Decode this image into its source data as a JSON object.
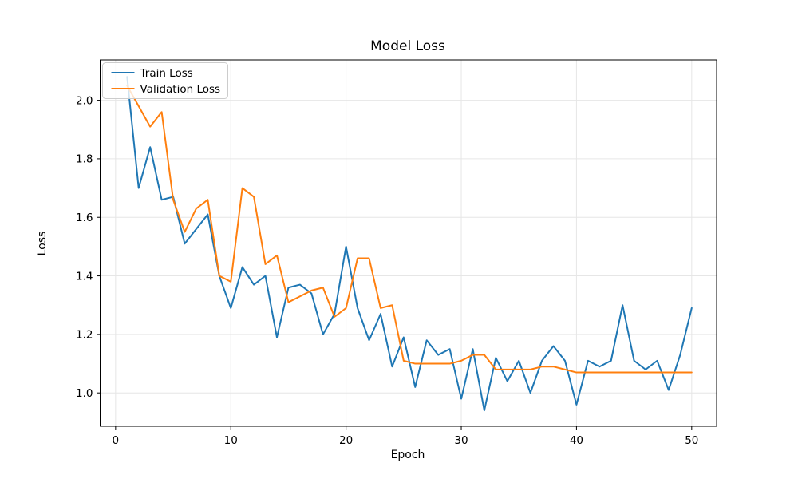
{
  "chart_data": {
    "type": "line",
    "title": "Model Loss",
    "xlabel": "Epoch",
    "ylabel": "Loss",
    "grid": true,
    "legend_position": "upper left",
    "xlim": [
      -1.34,
      52.16
    ],
    "ylim": [
      0.886,
      2.138
    ],
    "xticks": [
      0,
      10,
      20,
      30,
      40,
      50
    ],
    "yticks": [
      1.0,
      1.2,
      1.4,
      1.6,
      1.8,
      2.0
    ],
    "ytick_labels": [
      "1.0",
      "1.2",
      "1.4",
      "1.6",
      "1.8",
      "2.0"
    ],
    "x": [
      1,
      2,
      3,
      4,
      5,
      6,
      7,
      8,
      9,
      10,
      11,
      12,
      13,
      14,
      15,
      16,
      17,
      18,
      19,
      20,
      21,
      22,
      23,
      24,
      25,
      26,
      27,
      28,
      29,
      30,
      31,
      32,
      33,
      34,
      35,
      36,
      37,
      38,
      39,
      40,
      41,
      42,
      43,
      44,
      45,
      46,
      47,
      48,
      49,
      50
    ],
    "series": [
      {
        "name": "Train Loss",
        "color": "#1f77b4",
        "values": [
          2.08,
          1.7,
          1.84,
          1.66,
          1.67,
          1.51,
          1.56,
          1.61,
          1.4,
          1.29,
          1.43,
          1.37,
          1.4,
          1.19,
          1.36,
          1.37,
          1.34,
          1.2,
          1.27,
          1.5,
          1.29,
          1.18,
          1.27,
          1.09,
          1.19,
          1.02,
          1.18,
          1.13,
          1.15,
          0.98,
          1.15,
          0.94,
          1.12,
          1.04,
          1.11,
          1.0,
          1.11,
          1.16,
          1.11,
          0.96,
          1.11,
          1.09,
          1.11,
          1.3,
          1.11,
          1.08,
          1.11,
          1.01,
          1.13,
          1.29
        ]
      },
      {
        "name": "Validation Loss",
        "color": "#ff7f0e",
        "values": [
          2.05,
          1.98,
          1.91,
          1.96,
          1.66,
          1.55,
          1.63,
          1.66,
          1.4,
          1.38,
          1.7,
          1.67,
          1.44,
          1.47,
          1.31,
          1.33,
          1.35,
          1.36,
          1.26,
          1.29,
          1.46,
          1.46,
          1.29,
          1.3,
          1.11,
          1.1,
          1.1,
          1.1,
          1.1,
          1.11,
          1.13,
          1.13,
          1.08,
          1.08,
          1.08,
          1.08,
          1.09,
          1.09,
          1.08,
          1.07,
          1.07,
          1.07,
          1.07,
          1.07,
          1.07,
          1.07,
          1.07,
          1.07,
          1.07,
          1.07
        ]
      }
    ],
    "style": {
      "grid_color": "#e6e6e6",
      "spine_color": "#000000",
      "background": "#ffffff",
      "line_width": 2
    }
  }
}
